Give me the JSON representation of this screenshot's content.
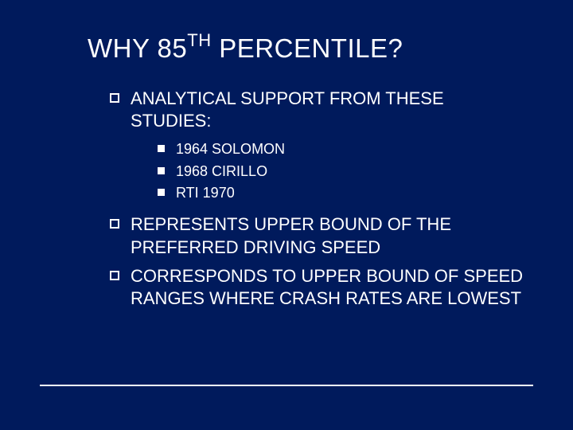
{
  "colors": {
    "background": "#001a5c",
    "text": "#ffffff",
    "bullet_border": "#ffffff",
    "bullet_fill": "#ffffff",
    "underline": "#ffffff"
  },
  "typography": {
    "title_fontsize": 33,
    "level1_fontsize": 22,
    "level2_fontsize": 18,
    "sup_fontsize": 22
  },
  "title": {
    "pre": "WHY 85",
    "sup": "TH",
    "post": " PERCENTILE?"
  },
  "bullets": [
    {
      "text": "ANALYTICAL SUPPORT FROM THESE STUDIES:",
      "sub": [
        "1964 SOLOMON",
        "1968 CIRILLO",
        "RTI 1970"
      ]
    },
    {
      "text": "REPRESENTS UPPER BOUND OF THE PREFERRED DRIVING SPEED",
      "sub": []
    },
    {
      "text": "CORRESPONDS TO UPPER BOUND OF SPEED RANGES WHERE CRASH RATES ARE LOWEST",
      "sub": []
    }
  ]
}
